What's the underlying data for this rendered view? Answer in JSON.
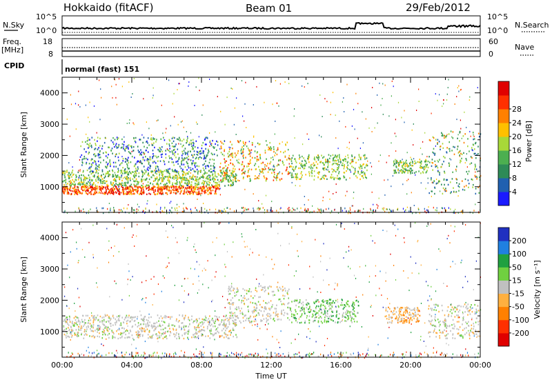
{
  "header": {
    "radar": "Hokkaido (fitACF)",
    "beam": "Beam 01",
    "date": "29/Feb/2012"
  },
  "status_panels": {
    "nsky_label": "N.Sky",
    "nsearch_label": "N.Search",
    "freq_label": "Freq.",
    "freq_unit": "[MHz]",
    "nave_label": "Nave",
    "cpid_label": "CPID",
    "cpid_value": "normal (fast) 151",
    "noise_ticks_left": [
      "10^5",
      "10^0"
    ],
    "noise_ticks_right": [
      "10^5",
      "10^0"
    ],
    "freq_ticks": [
      "18",
      "8"
    ],
    "nave_ticks": [
      "60",
      "0"
    ]
  },
  "chart_data": [
    {
      "type": "heatmap",
      "panel": "power",
      "ylabel": "Slant Range [km]",
      "ylim": [
        180,
        4500
      ],
      "y_ticks": [
        1000,
        2000,
        3000,
        4000
      ],
      "xlim_hours": [
        0,
        24
      ],
      "x_tick_labels": [
        "00:00",
        "04:00",
        "08:00",
        "12:00",
        "16:00",
        "20:00",
        "00:00"
      ],
      "colorbar": {
        "label": "Power [dB]",
        "ticks": [
          "4",
          "8",
          "12",
          "16",
          "20",
          "24",
          "28"
        ],
        "colors": [
          "#1a1aff",
          "#2060b0",
          "#2e8b57",
          "#4caf50",
          "#a8d838",
          "#ffc000",
          "#ff8000",
          "#ff3000",
          "#e00000"
        ]
      },
      "bands": [
        {
          "t": [
            0,
            9
          ],
          "r": [
            780,
            1050
          ],
          "level": "high"
        },
        {
          "t": [
            0,
            10
          ],
          "r": [
            1050,
            1550
          ],
          "level": "mid"
        },
        {
          "t": [
            1,
            9
          ],
          "r": [
            1500,
            2600
          ],
          "level": "low"
        },
        {
          "t": [
            9,
            13
          ],
          "r": [
            1200,
            2500
          ],
          "level": "mid-high"
        },
        {
          "t": [
            13,
            17.5
          ],
          "r": [
            1250,
            2050
          ],
          "level": "mid"
        },
        {
          "t": [
            19,
            21
          ],
          "r": [
            1450,
            1900
          ],
          "level": "mid"
        },
        {
          "t": [
            21,
            24
          ],
          "r": [
            800,
            2800
          ],
          "level": "mixed"
        }
      ]
    },
    {
      "type": "heatmap",
      "panel": "velocity",
      "ylabel": "Slant Range [km]",
      "ylim": [
        180,
        4500
      ],
      "y_ticks": [
        1000,
        2000,
        3000,
        4000
      ],
      "xlim_hours": [
        0,
        24
      ],
      "x_tick_labels": [
        "00:00",
        "04:00",
        "08:00",
        "12:00",
        "16:00",
        "20:00",
        "00:00"
      ],
      "xlabel": "Time UT",
      "colorbar": {
        "label": "Velocity [m s⁻¹]",
        "ticks": [
          "200",
          "100",
          "50",
          "15",
          "-15",
          "-50",
          "-100",
          "-200"
        ],
        "colors": [
          "#2030c0",
          "#2080e0",
          "#20a040",
          "#70d040",
          "#c0c0c0",
          "#ffb040",
          "#ff8000",
          "#ff3000",
          "#e00000"
        ]
      },
      "bands": [
        {
          "t": [
            0,
            10
          ],
          "r": [
            800,
            1550
          ],
          "level": "ground"
        },
        {
          "t": [
            9.5,
            13
          ],
          "r": [
            1300,
            2500
          ],
          "level": "ground"
        },
        {
          "t": [
            13,
            17
          ],
          "r": [
            1300,
            2050
          ],
          "level": "toward"
        },
        {
          "t": [
            18.5,
            20.5
          ],
          "r": [
            1300,
            1800
          ],
          "level": "away"
        },
        {
          "t": [
            21,
            24
          ],
          "r": [
            800,
            1900
          ],
          "level": "ground"
        }
      ]
    }
  ]
}
